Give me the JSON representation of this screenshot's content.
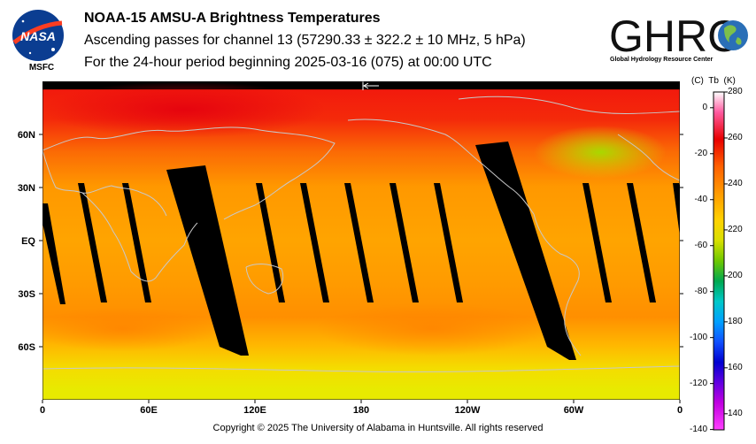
{
  "header": {
    "title": "NOAA-15 AMSU-A Brightness Temperatures",
    "subtitle": "Ascending passes for channel 13 (57290.33 ± 322.2 ± 10 MHz, 5 hPa)",
    "period": "For the 24-hour period beginning 2025-03-16 (075) at 00:00 UTC"
  },
  "logos": {
    "nasa_text": "NASA",
    "nasa_label": "MSFC",
    "ghrc_text": "GHRC",
    "ghrc_subtitle": "Global Hydrology Resource Center"
  },
  "map": {
    "lat_labels": [
      "60N",
      "30N",
      "EQ",
      "30S",
      "60S"
    ],
    "lon_labels": [
      "0",
      "60E",
      "120E",
      "180",
      "120W",
      "60W",
      "0"
    ],
    "colors": {
      "warm": "#e82010",
      "mid": "#ff9a00",
      "yellow": "#f0e000",
      "green": "#b8dc00",
      "gap": "#000000",
      "coast": "#c8c8c8"
    }
  },
  "colorbar": {
    "unit_c": "(C)",
    "unit_tb": "Tb",
    "unit_k": "(K)",
    "celsius_ticks": [
      "0",
      "-20",
      "-40",
      "-60",
      "-80",
      "-100",
      "-120",
      "-140"
    ],
    "kelvin_ticks": [
      "280",
      "260",
      "240",
      "220",
      "200",
      "180",
      "160",
      "140"
    ],
    "kelvin_min": 133,
    "kelvin_max": 280
  },
  "footer": {
    "copyright": "Copyright © 2025 The University of Alabama in Huntsville.  All rights reserved"
  }
}
